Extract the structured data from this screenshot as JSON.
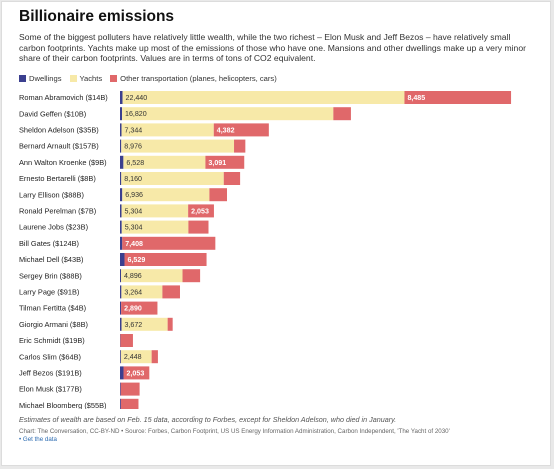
{
  "title": "Billionaire emissions",
  "subtitle": "Some of the biggest polluters have relatively little wealth, while the two richest – Elon Musk and Jeff Bezos – have relatively small carbon footprints. Yachts make up most of the emissions of those who have one. Mansions and other dwellings make up a very minor share of their carbon footprints. Values are in terms of tons of CO2 equivalent.",
  "footnote": "Estimates of wealth are based on Feb. 15 data, according to Forbes, except for Sheldon Adelson, who died in January.",
  "source": "Chart: The Conversation, CC-BY-ND • Source: Forbes, Carbon Footprint, US US Energy Information Administration, Carbon Independent, 'The Yacht of 2030'",
  "get_data": "• Get the data",
  "colors": {
    "dwellings": "#3b3f8f",
    "yachts": "#f7e9a8",
    "other": "#e0686a"
  },
  "chart_data": {
    "type": "bar",
    "orientation": "horizontal",
    "stacked": true,
    "categories": [
      "Roman Abramovich ($14B)",
      "David Geffen ($10B)",
      "Sheldon Adelson ($35B)",
      "Bernard Arnault ($157B)",
      "Ann Walton Kroenke ($9B)",
      "Ernesto Bertarelli ($8B)",
      "Larry Ellison ($88B)",
      "Ronald Perelman ($7B)",
      "Laurene Jobs ($23B)",
      "Bill Gates ($124B)",
      "Michael Dell ($43B)",
      "Sergey Brin ($88B)",
      "Larry Page ($91B)",
      "Tilman Fertitta ($4B)",
      "Giorgio Armani ($8B)",
      "Eric Schmidt ($19B)",
      "Carlos Slim ($64B)",
      "Jeff Bezos ($191B)",
      "Elon Musk ($177B)",
      "Michael Bloomberg ($55B)"
    ],
    "series": [
      {
        "name": "Dwellings",
        "values": [
          200,
          160,
          120,
          100,
          270,
          100,
          180,
          120,
          140,
          180,
          360,
          80,
          110,
          90,
          120,
          30,
          70,
          280,
          60,
          70
        ]
      },
      {
        "name": "Yachts",
        "values": [
          22440,
          16820,
          7344,
          8976,
          6528,
          8160,
          6936,
          5304,
          5304,
          0,
          0,
          4896,
          3264,
          0,
          3672,
          0,
          2448,
          0,
          0,
          0
        ]
      },
      {
        "name": "Other transportation (planes, helicopters, cars)",
        "values": [
          8485,
          1400,
          4382,
          900,
          3091,
          1300,
          1400,
          2053,
          1600,
          7408,
          6529,
          1400,
          1400,
          2890,
          400,
          1000,
          500,
          2053,
          1500,
          1400
        ]
      }
    ],
    "labels": {
      "yachts": [
        "22,440",
        "16,820",
        "7,344",
        "8,976",
        "6,528",
        "8,160",
        "6,936",
        "5,304",
        "5,304",
        "",
        "",
        "4,896",
        "3,264",
        "",
        "3,672",
        "",
        "2,448",
        "",
        "",
        ""
      ],
      "other": [
        "8,485",
        "",
        "4,382",
        "",
        "3,091",
        "",
        "",
        "2,053",
        "",
        "7,408",
        "6,529",
        "",
        "",
        "2,890",
        "",
        "",
        "",
        "2,053",
        "",
        ""
      ]
    },
    "xlim": [
      0,
      31200
    ],
    "grid": false,
    "legend": "top-left"
  }
}
